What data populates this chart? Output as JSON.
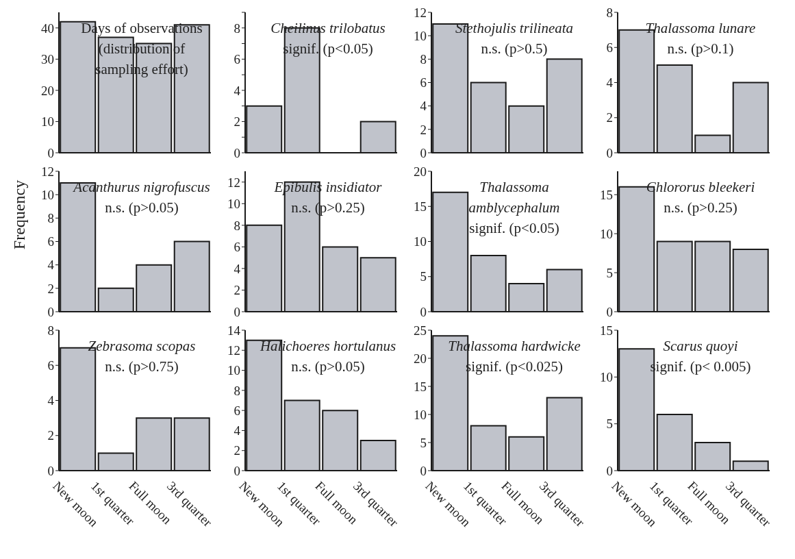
{
  "chart_data": [
    {
      "type": "bar",
      "title": "Days of observations (distribution of sampling effort)",
      "categories": [
        null,
        null,
        null,
        null
      ],
      "values": [
        42,
        37,
        35,
        41
      ],
      "color": "#c0c3cb",
      "ylim": [
        0,
        45
      ],
      "yticks": [
        0,
        10,
        20,
        30,
        40
      ],
      "tick_labels": "y"
    },
    {
      "type": "bar",
      "title": "Cheilinus trilobatus",
      "subtitle": "signif. (p<0.05)",
      "categories": [
        null,
        null,
        null,
        null
      ],
      "values": [
        3,
        8,
        0,
        2
      ],
      "color": "#c0c3cb",
      "ylim": [
        0,
        9
      ],
      "yticks": [
        0,
        {
          "value": 1,
          "label": null
        },
        2,
        {
          "value": 3,
          "label": null
        },
        4,
        {
          "value": 5,
          "label": null
        },
        6,
        {
          "value": 7,
          "label": null
        },
        8,
        {
          "value": 9,
          "label": null
        }
      ],
      "tick_labels": "y"
    },
    {
      "type": "bar",
      "title": "Stethojulis trilineata",
      "subtitle": "n.s. (p>0.5)",
      "categories": [
        null,
        null,
        null,
        null
      ],
      "values": [
        11,
        6,
        4,
        8
      ],
      "color": "#c0c3cb",
      "ylim": [
        0,
        12
      ],
      "yticks": [
        0,
        2,
        4,
        6,
        8,
        10,
        12
      ],
      "tick_labels": "y"
    },
    {
      "type": "bar",
      "title": "Thalassoma lunare",
      "subtitle": "n.s. (p>0.1)",
      "categories": [
        null,
        null,
        null,
        null
      ],
      "values": [
        7,
        5,
        1,
        4
      ],
      "color": "#c0c3cb",
      "ylim": [
        0,
        8
      ],
      "yticks": [
        0,
        2,
        4,
        6,
        8
      ],
      "tick_labels": "y"
    },
    {
      "type": "bar",
      "title": "Acanthurus nigrofuscus",
      "subtitle": "n.s. (p>0.05)",
      "ylabel": "Frequency",
      "categories": [
        null,
        null,
        null,
        null
      ],
      "values": [
        11,
        2,
        4,
        6
      ],
      "color": "#c0c3cb",
      "ylim": [
        0,
        12
      ],
      "yticks": [
        0,
        2,
        4,
        6,
        8,
        10,
        12
      ],
      "tick_labels": "y"
    },
    {
      "type": "bar",
      "title": "Epibulis insidiator",
      "subtitle": "n.s. (p>0.25)",
      "categories": [
        null,
        null,
        null,
        null
      ],
      "values": [
        8,
        12,
        6,
        5
      ],
      "color": "#c0c3cb",
      "ylim": [
        0,
        13
      ],
      "yticks": [
        0,
        2,
        4,
        6,
        8,
        10,
        12
      ],
      "tick_labels": "y"
    },
    {
      "type": "bar",
      "title": "Thalassoma amblycephalum",
      "subtitle": "signif. (p<0.05)",
      "categories": [
        null,
        null,
        null,
        null
      ],
      "values": [
        17,
        8,
        4,
        6
      ],
      "color": "#c0c3cb",
      "ylim": [
        0,
        20
      ],
      "yticks": [
        0,
        5,
        10,
        15,
        20
      ],
      "tick_labels": "y"
    },
    {
      "type": "bar",
      "title": "Chlororus bleekeri",
      "subtitle": "n.s. (p>0.25)",
      "categories": [
        null,
        null,
        null,
        null
      ],
      "values": [
        16,
        9,
        9,
        8
      ],
      "color": "#c0c3cb",
      "ylim": [
        0,
        18
      ],
      "yticks": [
        0,
        5,
        10,
        15
      ],
      "tick_labels": "y"
    },
    {
      "type": "bar",
      "title": "Zebrasoma scopas",
      "subtitle": "n.s. (p>0.75)",
      "categories": [
        "New moon",
        "1st quarter",
        "Full moon",
        "3rd quarter"
      ],
      "values": [
        7,
        1,
        3,
        3
      ],
      "color": "#c0c3cb",
      "ylim": [
        0,
        8
      ],
      "yticks": [
        0,
        2,
        4,
        6,
        8
      ]
    },
    {
      "type": "bar",
      "title": "Halichoeres hortulanus",
      "subtitle": "n.s. (p>0.05)",
      "categories": [
        "New moon",
        "1st quarter",
        "Full moon",
        "3rd quarter"
      ],
      "values": [
        13,
        7,
        6,
        3
      ],
      "color": "#c0c3cb",
      "ylim": [
        0,
        14
      ],
      "yticks": [
        0,
        2,
        4,
        6,
        8,
        10,
        12,
        14
      ]
    },
    {
      "type": "bar",
      "title": "Thalassoma hardwicke",
      "subtitle": "signif. (p<0.025)",
      "categories": [
        "New moon",
        "1st quarter",
        "Full moon",
        "3rd quarter"
      ],
      "values": [
        24,
        8,
        6,
        13
      ],
      "color": "#c0c3cb",
      "ylim": [
        0,
        25
      ],
      "yticks": [
        0,
        5,
        10,
        15,
        20,
        25
      ]
    },
    {
      "type": "bar",
      "title": "Scarus quoyi",
      "subtitle": "signif. (p< 0.005)",
      "categories": [
        "New moon",
        "1st quarter",
        "Full moon",
        "3rd quarter"
      ],
      "values": [
        13,
        6,
        3,
        1
      ],
      "color": "#c0c3cb",
      "ylim": [
        0,
        15
      ],
      "yticks": [
        0,
        5,
        10,
        15
      ]
    }
  ]
}
